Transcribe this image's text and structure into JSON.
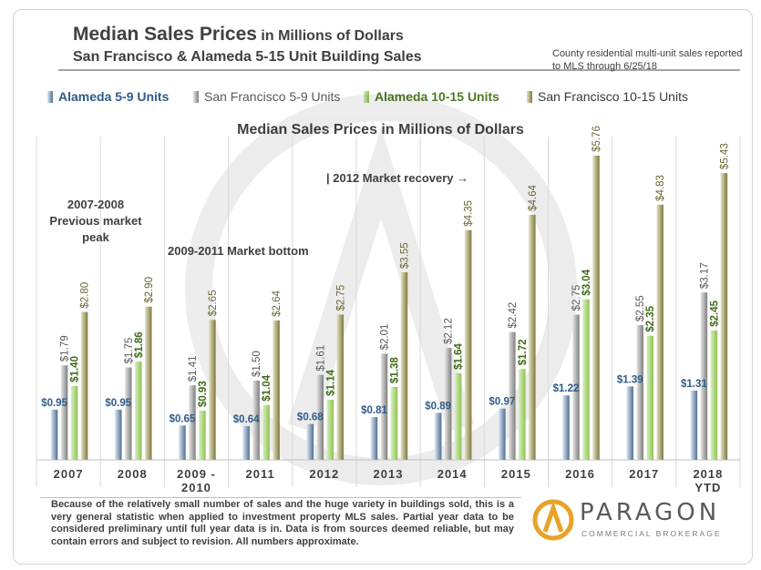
{
  "header": {
    "title_main": "Median Sales Prices",
    "title_sub": " in Millions of Dollars",
    "subtitle": "San Francisco & Alameda 5-15 Unit Building Sales",
    "note": "County residential multi-unit sales reported to MLS through 6/25/18"
  },
  "chart_title": "Median Sales Prices in Millions of Dollars",
  "annotations": {
    "previous_peak": "2007-2008 Previous market peak",
    "market_bottom": "2009-2011 Market bottom",
    "recovery": "| 2012 Market recovery →"
  },
  "footer": {
    "disclaimer": "Because of the relatively small number of sales and the huge variety in buildings sold, this is a very general statistic when applied to investment property MLS sales. Partial year data to be considered preliminary until full year data is in. Data is from sources deemed reliable, but may contain errors and subject to revision. All numbers approximate."
  },
  "logo": {
    "name": "PARAGON",
    "tagline": "COMMERCIAL BROKERAGE"
  },
  "chart_data": {
    "type": "bar",
    "categories": [
      "2007",
      "2008",
      "2009 - 2010",
      "2011",
      "2012",
      "2013",
      "2014",
      "2015",
      "2016",
      "2017",
      "2018 YTD"
    ],
    "series": [
      {
        "name": "Alameda 5-9 Units",
        "color": "#4f6f94",
        "values": [
          0.95,
          0.95,
          0.65,
          0.64,
          0.68,
          0.81,
          0.89,
          0.97,
          1.22,
          1.39,
          1.31
        ],
        "labels": [
          "$0.95",
          "$0.95",
          "$0.65",
          "$0.64",
          "$0.68",
          "$0.81",
          "$0.89",
          "$0.97",
          "$1.22",
          "$1.39",
          "$1.31"
        ]
      },
      {
        "name": "San Francisco 5-9 Units",
        "color": "#7f7f7f",
        "values": [
          1.79,
          1.75,
          1.41,
          1.5,
          1.61,
          2.01,
          2.12,
          2.42,
          2.75,
          2.55,
          3.17
        ],
        "labels": [
          "$1.79",
          "$1.75",
          "$1.41",
          "$1.50",
          "$1.61",
          "$2.01",
          "$2.12",
          "$2.42",
          "$2.75",
          "$2.55",
          "$3.17"
        ]
      },
      {
        "name": "Alameda 10-15 Units",
        "color": "#8dc450",
        "values": [
          1.4,
          1.86,
          0.93,
          1.04,
          1.14,
          1.38,
          1.64,
          1.72,
          3.04,
          2.35,
          2.45
        ],
        "labels": [
          "$1.40",
          "$1.86",
          "$0.93",
          "$1.04",
          "$1.14",
          "$1.38",
          "$1.64",
          "$1.72",
          "$3.04",
          "$2.35",
          "$2.45"
        ]
      },
      {
        "name": "San Francisco 10-15 Units",
        "color": "#7f7a3f",
        "values": [
          2.8,
          2.9,
          2.65,
          2.64,
          2.75,
          3.55,
          4.35,
          4.64,
          5.76,
          4.83,
          5.43
        ],
        "labels": [
          "$2.80",
          "$2.90",
          "$2.65",
          "$2.64",
          "$2.75",
          "$3.55",
          "$4.35",
          "$4.64",
          "$5.76",
          "$4.83",
          "$5.43"
        ]
      }
    ],
    "title": "Median Sales Prices in Millions of Dollars",
    "ylim": [
      0,
      6
    ],
    "grid": "vertical",
    "legend": "top"
  }
}
